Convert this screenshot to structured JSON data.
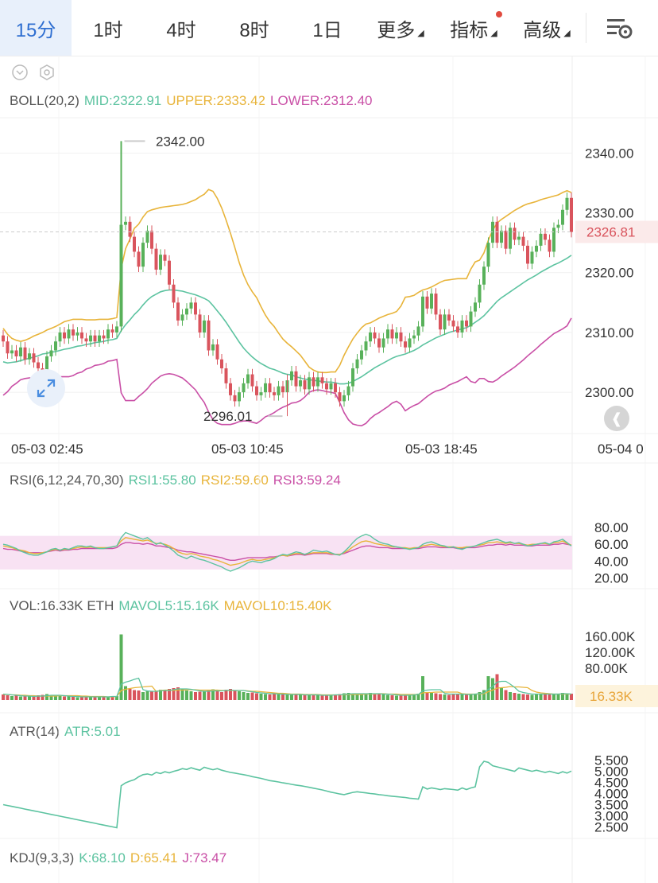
{
  "tabs": [
    {
      "label": "15分",
      "active": true
    },
    {
      "label": "1时"
    },
    {
      "label": "4时"
    },
    {
      "label": "8时"
    },
    {
      "label": "1日"
    },
    {
      "label": "更多",
      "caret": true
    },
    {
      "label": "指标",
      "caret": true,
      "dot": true
    },
    {
      "label": "高级",
      "caret": true
    }
  ],
  "icons": {
    "settings": "chart-settings-icon",
    "collapse": "chevron-circle-icon",
    "gear": "hexagon-gear-icon",
    "expand": "expand-arrows-icon",
    "back": "double-chevron-left-icon"
  },
  "colors": {
    "up": "#58b15a",
    "down": "#d9545d",
    "mid": "#5cc3a0",
    "upper": "#e8b43a",
    "lower": "#c94fa6",
    "rsi1": "#5cc3a0",
    "rsi2": "#e8b43a",
    "rsi3": "#c94fa6",
    "atr": "#5cc3a0",
    "price_tag": "#d9545d"
  },
  "boll_legend": {
    "name": "BOLL(20,2)",
    "mid": "MID:2322.91",
    "upper": "UPPER:2333.42",
    "lower": "LOWER:2312.40"
  },
  "rsi_legend": {
    "name": "RSI(6,12,24,70,30)",
    "rsi1": "RSI1:55.80",
    "rsi2": "RSI2:59.60",
    "rsi3": "RSI3:59.24"
  },
  "vol_legend": {
    "name": "VOL:16.33K ETH",
    "mavol5": "MAVOL5:15.16K",
    "mavol10": "MAVOL10:15.40K"
  },
  "atr_legend": {
    "name": "ATR(14)",
    "atr": "ATR:5.01"
  },
  "kdj_legend": {
    "name": "KDJ(9,3,3)",
    "k": "K:68.10",
    "d": "D:65.41",
    "j": "J:73.47"
  },
  "chart_data": {
    "type": "candlestick",
    "interval": "15分",
    "x_ticks": [
      "05-03 02:45",
      "05-03 10:45",
      "05-03 18:45",
      "05-04 0"
    ],
    "price_axis": {
      "ticks": [
        "2340.00",
        "2330.00",
        "2320.00",
        "2310.00",
        "2300.00"
      ],
      "ylim": [
        2293.1,
        2345.9
      ],
      "last_price": "2326.81"
    },
    "annotations": {
      "high": "2342.00",
      "low": "2296.01"
    },
    "close": [
      2308.5,
      2306.5,
      2307.0,
      2306.0,
      2307.5,
      2305.5,
      2306.5,
      2305.0,
      2304.0,
      2303.0,
      2306.0,
      2307.0,
      2308.5,
      2310.0,
      2309.0,
      2310.5,
      2309.5,
      2310.0,
      2309.0,
      2308.5,
      2309.5,
      2308.5,
      2309.5,
      2309.0,
      2310.5,
      2310.0,
      2311.0,
      2328.0,
      2328.5,
      2326.0,
      2323.5,
      2321.0,
      2325.0,
      2327.0,
      2324.0,
      2320.5,
      2323.0,
      2322.0,
      2318.0,
      2315.0,
      2312.0,
      2313.0,
      2314.0,
      2315.0,
      2313.0,
      2310.0,
      2312.0,
      2307.0,
      2308.0,
      2305.5,
      2304.0,
      2301.5,
      2299.5,
      2298.5,
      2300.0,
      2301.5,
      2303.0,
      2301.0,
      2299.5,
      2300.0,
      2301.5,
      2300.0,
      2299.5,
      2301.0,
      2300.0,
      2302.0,
      2303.5,
      2301.0,
      2302.0,
      2300.5,
      2302.5,
      2301.0,
      2302.5,
      2301.5,
      2300.5,
      2301.5,
      2300.0,
      2298.5,
      2299.5,
      2301.0,
      2304.0,
      2305.5,
      2307.0,
      2308.5,
      2310.0,
      2309.0,
      2307.5,
      2309.0,
      2310.5,
      2309.0,
      2310.0,
      2308.5,
      2307.5,
      2309.0,
      2309.5,
      2311.0,
      2316.0,
      2314.0,
      2316.5,
      2313.0,
      2310.5,
      2313.0,
      2312.0,
      2311.0,
      2310.0,
      2312.0,
      2311.0,
      2313.5,
      2315.0,
      2318.0,
      2321.0,
      2325.0,
      2328.5,
      2325.0,
      2327.0,
      2324.0,
      2327.5,
      2325.5,
      2326.0,
      2324.5,
      2321.5,
      2323.5,
      2324.5,
      2326.5,
      2325.5,
      2323.5,
      2327.5,
      2328.0,
      2330.5,
      2332.5,
      2326.8
    ],
    "bb_upper": [
      2310.7,
      2309.7,
      2309.0,
      2308.7,
      2308.5,
      2308.7,
      2309.0,
      2309.4,
      2309.7,
      2310.0,
      2310.4,
      2310.7,
      2311.0,
      2311.4,
      2311.8,
      2312.0,
      2312.2,
      2312.2,
      2312.2,
      2312.1,
      2312.1,
      2312.1,
      2312.2,
      2312.2,
      2312.2,
      2312.3,
      2312.5,
      2320.7,
      2324.0,
      2325.6,
      2327.4,
      2328.1,
      2329.3,
      2330.2,
      2330.5,
      2330.7,
      2330.9,
      2331.0,
      2331.1,
      2331.2,
      2331.3,
      2331.4,
      2331.6,
      2331.9,
      2332.2,
      2332.7,
      2333.1,
      2333.9,
      2333.6,
      2332.4,
      2330.8,
      2328.8,
      2326.6,
      2324.2,
      2321.7,
      2319.6,
      2318.0,
      2316.8,
      2315.8,
      2314.3,
      2312.9,
      2311.8,
      2311.0,
      2309.9,
      2308.9,
      2308.2,
      2307.6,
      2306.9,
      2306.2,
      2305.2,
      2304.2,
      2303.7,
      2303.4,
      2303.3,
      2303.3,
      2303.4,
      2303.4,
      2304.5,
      2306.2,
      2307.6,
      2308.9,
      2309.9,
      2310.8,
      2311.4,
      2311.6,
      2312.0,
      2312.4,
      2312.7,
      2313.0,
      2313.2,
      2313.5,
      2314.4,
      2315.9,
      2316.0,
      2316.2,
      2316.7,
      2317.1,
      2317.3,
      2317.6,
      2318.0,
      2318.4,
      2318.7,
      2318.8,
      2318.9,
      2319.0,
      2319.0,
      2319.0,
      2320.6,
      2321.8,
      2322.1,
      2323.3,
      2325.4,
      2327.1,
      2328.3,
      2328.9,
      2329.4,
      2329.9,
      2330.4,
      2330.8,
      2331.2,
      2331.5,
      2331.7,
      2331.9,
      2332.2,
      2332.4,
      2332.6,
      2332.8,
      2333.0,
      2333.4,
      2333.7,
      2333.4
    ],
    "bb_mid": [
      2305.1,
      2304.9,
      2305.0,
      2305.1,
      2305.3,
      2305.5,
      2305.7,
      2305.9,
      2306.1,
      2306.4,
      2306.5,
      2306.7,
      2306.8,
      2307.0,
      2307.2,
      2307.3,
      2307.5,
      2307.7,
      2307.8,
      2308.0,
      2308.1,
      2308.3,
      2308.4,
      2308.5,
      2308.7,
      2308.8,
      2309.0,
      2310.3,
      2311.3,
      2312.1,
      2313.0,
      2313.7,
      2314.6,
      2315.4,
      2316.0,
      2316.4,
      2316.8,
      2317.0,
      2317.1,
      2317.1,
      2317.0,
      2316.9,
      2316.7,
      2316.5,
      2316.3,
      2316.0,
      2315.7,
      2315.3,
      2314.5,
      2313.6,
      2312.7,
      2311.7,
      2310.6,
      2309.5,
      2308.4,
      2307.4,
      2306.6,
      2305.9,
      2305.3,
      2304.8,
      2304.4,
      2304.0,
      2303.8,
      2303.5,
      2303.2,
      2303.0,
      2302.9,
      2302.6,
      2302.4,
      2302.2,
      2302.1,
      2302.0,
      2301.9,
      2301.8,
      2301.7,
      2301.7,
      2301.6,
      2301.4,
      2301.4,
      2301.5,
      2301.8,
      2302.2,
      2302.6,
      2303.1,
      2303.6,
      2304.1,
      2304.5,
      2304.9,
      2305.3,
      2305.7,
      2306.0,
      2306.2,
      2306.4,
      2306.7,
      2307.0,
      2307.4,
      2307.9,
      2308.3,
      2308.7,
      2309.1,
      2309.4,
      2309.7,
      2310.0,
      2310.2,
      2310.4,
      2310.6,
      2310.8,
      2311.2,
      2311.7,
      2312.2,
      2312.8,
      2313.6,
      2314.4,
      2315.2,
      2315.8,
      2316.3,
      2316.8,
      2317.3,
      2317.8,
      2318.3,
      2318.8,
      2319.2,
      2319.6,
      2320.1,
      2320.5,
      2320.9,
      2321.3,
      2321.6,
      2322.0,
      2322.4,
      2322.9
    ],
    "bb_lower": [
      2299.5,
      2300.1,
      2301.0,
      2301.5,
      2302.1,
      2302.3,
      2302.4,
      2302.4,
      2302.5,
      2302.8,
      2302.6,
      2302.7,
      2302.6,
      2302.6,
      2302.6,
      2302.6,
      2302.8,
      2303.2,
      2303.4,
      2303.9,
      2304.1,
      2304.5,
      2304.6,
      2304.8,
      2305.2,
      2305.3,
      2305.5,
      2299.9,
      2298.6,
      2298.6,
      2298.6,
      2299.3,
      2299.9,
      2300.6,
      2301.5,
      2302.1,
      2302.7,
      2303.0,
      2303.1,
      2303.0,
      2302.7,
      2302.4,
      2301.8,
      2301.1,
      2300.4,
      2299.3,
      2298.3,
      2296.7,
      2295.4,
      2294.8,
      2294.6,
      2294.6,
      2294.6,
      2294.8,
      2295.1,
      2295.2,
      2295.2,
      2295.0,
      2294.8,
      2295.3,
      2295.9,
      2296.2,
      2296.6,
      2297.1,
      2297.5,
      2297.8,
      2298.2,
      2298.3,
      2298.6,
      2299.2,
      2300.0,
      2300.3,
      2300.4,
      2300.3,
      2300.1,
      2300.0,
      2299.8,
      2298.3,
      2296.6,
      2295.4,
      2294.7,
      2294.5,
      2294.4,
      2294.8,
      2295.6,
      2296.2,
      2296.6,
      2297.1,
      2297.6,
      2298.2,
      2298.5,
      2298.0,
      2296.9,
      2297.4,
      2297.8,
      2298.1,
      2298.7,
      2299.3,
      2299.8,
      2300.2,
      2300.4,
      2300.7,
      2301.2,
      2301.5,
      2301.8,
      2302.2,
      2302.6,
      2301.8,
      2301.6,
      2302.3,
      2302.3,
      2301.8,
      2301.7,
      2302.1,
      2302.7,
      2303.2,
      2303.7,
      2304.2,
      2304.8,
      2305.4,
      2306.1,
      2306.7,
      2307.3,
      2308.0,
      2308.6,
      2309.2,
      2309.8,
      2310.2,
      2310.6,
      2311.1,
      2312.4
    ],
    "rsi_axis": {
      "ticks": [
        "80.00",
        "60.00",
        "40.00",
        "20.00"
      ],
      "band": [
        70,
        30
      ]
    },
    "rsi1": [
      60,
      59,
      57,
      55,
      52,
      50,
      48,
      47,
      47,
      49,
      51,
      54,
      55,
      53,
      55,
      54,
      56,
      58,
      58,
      57,
      58,
      56,
      55,
      55,
      56,
      57,
      58,
      68,
      74,
      72,
      70,
      68,
      66,
      68,
      64,
      60,
      62,
      59,
      56,
      52,
      47,
      45,
      43,
      46,
      44,
      42,
      41,
      39,
      37,
      35,
      33,
      30,
      28,
      30,
      32,
      35,
      38,
      40,
      39,
      38,
      40,
      41,
      43,
      46,
      48,
      47,
      49,
      51,
      50,
      48,
      50,
      53,
      52,
      51,
      52,
      50,
      48,
      47,
      51,
      56,
      62,
      67,
      70,
      72,
      70,
      66,
      63,
      61,
      60,
      58,
      57,
      56,
      55,
      54,
      55,
      56,
      60,
      62,
      63,
      61,
      59,
      58,
      56,
      57,
      55,
      54,
      56,
      57,
      58,
      60,
      62,
      64,
      65,
      66,
      64,
      62,
      63,
      61,
      62,
      60,
      58,
      59,
      60,
      61,
      62,
      60,
      63,
      64,
      66,
      62,
      58
    ],
    "rsi2": [
      58,
      57,
      56,
      54,
      53,
      52,
      50,
      49,
      49,
      50,
      51,
      53,
      54,
      53,
      54,
      54,
      55,
      56,
      57,
      56,
      57,
      56,
      56,
      56,
      56,
      57,
      58,
      64,
      68,
      67,
      66,
      65,
      64,
      65,
      63,
      61,
      61,
      60,
      58,
      55,
      51,
      49,
      48,
      49,
      48,
      46,
      45,
      44,
      42,
      41,
      39,
      37,
      35,
      36,
      37,
      39,
      41,
      42,
      41,
      41,
      42,
      43,
      44,
      46,
      47,
      46,
      48,
      49,
      49,
      48,
      49,
      50,
      50,
      50,
      50,
      49,
      48,
      48,
      50,
      53,
      57,
      60,
      63,
      64,
      63,
      61,
      60,
      59,
      58,
      57,
      57,
      56,
      56,
      55,
      56,
      56,
      58,
      59,
      60,
      59,
      58,
      57,
      57,
      57,
      56,
      56,
      57,
      57,
      58,
      59,
      60,
      62,
      62,
      63,
      62,
      61,
      62,
      61,
      61,
      60,
      59,
      60,
      60,
      61,
      61,
      60,
      62,
      62,
      64,
      61,
      59
    ],
    "rsi3": [
      55,
      54,
      54,
      53,
      52,
      51,
      50,
      50,
      50,
      50,
      51,
      52,
      53,
      52,
      53,
      53,
      54,
      54,
      55,
      55,
      55,
      55,
      55,
      55,
      55,
      55,
      56,
      60,
      62,
      62,
      61,
      61,
      60,
      61,
      60,
      58,
      58,
      57,
      56,
      55,
      53,
      52,
      51,
      51,
      50,
      49,
      48,
      47,
      46,
      45,
      44,
      42,
      41,
      41,
      42,
      43,
      44,
      44,
      44,
      44,
      44,
      45,
      45,
      46,
      47,
      46,
      47,
      48,
      48,
      47,
      48,
      49,
      49,
      49,
      49,
      48,
      48,
      48,
      49,
      51,
      53,
      55,
      57,
      58,
      58,
      57,
      56,
      56,
      56,
      55,
      55,
      55,
      55,
      55,
      55,
      55,
      56,
      57,
      57,
      57,
      56,
      56,
      56,
      56,
      55,
      55,
      56,
      56,
      56,
      57,
      58,
      59,
      59,
      60,
      60,
      59,
      60,
      59,
      59,
      59,
      58,
      58,
      59,
      59,
      59,
      59,
      60,
      60,
      61,
      60,
      59
    ],
    "vol_axis": {
      "ticks": [
        "160.00K",
        "120.00K",
        "80.00K"
      ],
      "last": "16.33K"
    },
    "volume": [
      14,
      12,
      10,
      11,
      9,
      10,
      9,
      8,
      12,
      13,
      15,
      12,
      11,
      10,
      9,
      9,
      8,
      7,
      8,
      9,
      7,
      8,
      10,
      9,
      8,
      9,
      10,
      165,
      35,
      28,
      25,
      24,
      20,
      22,
      21,
      23,
      26,
      24,
      28,
      30,
      32,
      28,
      24,
      22,
      20,
      21,
      23,
      25,
      27,
      22,
      20,
      26,
      28,
      25,
      22,
      20,
      18,
      19,
      17,
      16,
      15,
      14,
      16,
      15,
      14,
      13,
      15,
      14,
      13,
      12,
      14,
      13,
      12,
      11,
      12,
      13,
      14,
      15,
      17,
      18,
      16,
      15,
      14,
      16,
      18,
      17,
      15,
      14,
      13,
      12,
      11,
      12,
      13,
      14,
      15,
      16,
      60,
      20,
      18,
      17,
      15,
      14,
      13,
      14,
      15,
      16,
      14,
      13,
      15,
      20,
      25,
      60,
      55,
      65,
      30,
      25,
      20,
      18,
      16,
      15,
      14,
      13,
      15,
      16,
      15,
      14,
      15,
      16,
      18,
      17,
      16
    ],
    "mavol5": [
      15,
      14,
      13,
      12,
      11,
      10,
      10,
      9,
      10,
      10,
      11,
      12,
      12,
      12,
      11,
      10,
      9,
      9,
      8,
      8,
      8,
      8,
      8,
      8,
      8,
      9,
      9,
      40,
      45,
      48,
      52,
      55,
      26,
      23,
      22,
      22,
      23,
      24,
      24,
      26,
      28,
      28,
      28,
      27,
      25,
      23,
      22,
      22,
      23,
      23,
      23,
      24,
      25,
      24,
      24,
      24,
      22,
      21,
      19,
      18,
      17,
      16,
      16,
      15,
      15,
      14,
      14,
      14,
      14,
      13,
      13,
      13,
      13,
      12,
      12,
      12,
      13,
      13,
      14,
      15,
      16,
      16,
      16,
      16,
      16,
      16,
      16,
      15,
      15,
      14,
      13,
      12,
      12,
      12,
      13,
      14,
      23,
      25,
      26,
      26,
      26,
      17,
      15,
      15,
      15,
      15,
      14,
      14,
      15,
      16,
      18,
      27,
      34,
      45,
      47,
      47,
      40,
      32,
      22,
      19,
      17,
      15,
      15,
      15,
      15,
      15,
      15,
      15,
      16,
      16,
      15
    ],
    "mavol10": [
      14,
      14,
      13,
      13,
      12,
      12,
      11,
      11,
      10,
      10,
      10,
      10,
      10,
      11,
      11,
      11,
      11,
      11,
      10,
      10,
      9,
      9,
      9,
      9,
      8,
      8,
      9,
      24,
      27,
      29,
      31,
      32,
      33,
      34,
      35,
      22,
      24,
      25,
      25,
      24,
      25,
      25,
      26,
      26,
      26,
      25,
      25,
      25,
      25,
      25,
      24,
      24,
      24,
      24,
      24,
      24,
      23,
      22,
      22,
      21,
      20,
      19,
      18,
      17,
      17,
      16,
      15,
      15,
      15,
      14,
      14,
      14,
      14,
      13,
      13,
      13,
      13,
      13,
      13,
      14,
      14,
      14,
      14,
      15,
      15,
      15,
      16,
      16,
      15,
      15,
      15,
      14,
      14,
      14,
      14,
      14,
      18,
      19,
      19,
      20,
      20,
      20,
      20,
      20,
      20,
      16,
      15,
      15,
      15,
      15,
      16,
      21,
      25,
      30,
      31,
      32,
      34,
      33,
      33,
      32,
      31,
      24,
      20,
      18,
      17,
      16,
      15,
      15,
      15,
      15,
      15
    ],
    "atr_axis": {
      "ticks": [
        "5.500",
        "5.000",
        "4.500",
        "4.000",
        "3.500",
        "3.000",
        "2.500"
      ]
    },
    "atr": [
      3.5,
      3.46,
      3.42,
      3.38,
      3.34,
      3.3,
      3.26,
      3.22,
      3.18,
      3.14,
      3.1,
      3.06,
      3.02,
      2.98,
      2.94,
      2.9,
      2.86,
      2.82,
      2.78,
      2.74,
      2.7,
      2.66,
      2.62,
      2.58,
      2.54,
      2.5,
      2.46,
      4.35,
      4.48,
      4.56,
      4.62,
      4.75,
      4.85,
      4.88,
      4.83,
      4.95,
      4.9,
      4.98,
      4.93,
      5.0,
      5.05,
      5.12,
      5.08,
      5.16,
      5.1,
      5.05,
      5.18,
      5.12,
      5.07,
      5.12,
      5.05,
      5.0,
      4.95,
      4.92,
      4.88,
      4.85,
      4.81,
      4.76,
      4.72,
      4.68,
      4.63,
      4.58,
      4.55,
      4.52,
      4.48,
      4.45,
      4.41,
      4.38,
      4.35,
      4.32,
      4.28,
      4.24,
      4.2,
      4.16,
      4.11,
      4.06,
      4.02,
      3.98,
      3.95,
      4.0,
      4.05,
      4.08,
      4.05,
      4.03,
      4.0,
      3.98,
      3.95,
      3.93,
      3.9,
      3.88,
      3.86,
      3.84,
      3.82,
      3.79,
      3.77,
      3.75,
      4.3,
      4.2,
      4.25,
      4.22,
      4.18,
      4.22,
      4.2,
      4.18,
      4.15,
      4.25,
      4.18,
      4.25,
      4.3,
      5.2,
      5.45,
      5.4,
      5.25,
      5.2,
      5.15,
      5.1,
      5.05,
      5.0,
      5.15,
      5.1,
      5.05,
      5.0,
      5.05,
      5.0,
      4.95,
      5.0,
      4.95,
      4.9,
      4.98,
      4.92,
      5.01
    ]
  }
}
